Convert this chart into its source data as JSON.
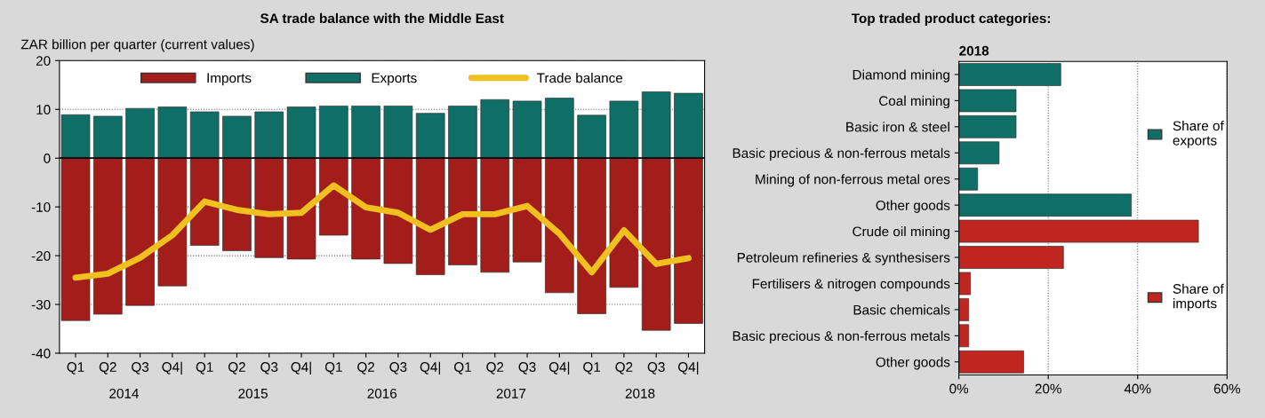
{
  "chart_data": [
    {
      "type": "bar",
      "title": "SA trade balance with the Middle East",
      "ylabel": "ZAR billion per quarter (current values)",
      "categories": [
        "Q1",
        "Q2",
        "Q3",
        "Q4|",
        "Q1",
        "Q2",
        "Q3",
        "Q4|",
        "Q1",
        "Q2",
        "Q3",
        "Q4|",
        "Q1",
        "Q2",
        "Q3",
        "Q4|",
        "Q1",
        "Q2",
        "Q3",
        "Q4|"
      ],
      "series": [
        {
          "name": "Imports",
          "color": "#a31d1a",
          "values": [
            -33.3,
            -32.0,
            -30.2,
            -26.2,
            -17.9,
            -19.0,
            -20.4,
            -20.7,
            -15.8,
            -20.7,
            -21.6,
            -23.9,
            -21.9,
            -23.4,
            -21.3,
            -27.6,
            -31.9,
            -26.5,
            -35.3,
            -33.9
          ]
        },
        {
          "name": "Exports",
          "color": "#0f6e66",
          "values": [
            8.9,
            8.6,
            10.2,
            10.5,
            9.5,
            8.6,
            9.5,
            10.5,
            10.7,
            10.7,
            10.7,
            9.2,
            10.7,
            12.0,
            11.7,
            12.3,
            8.8,
            11.7,
            13.6,
            13.3
          ]
        },
        {
          "name": "Trade balance",
          "type": "line",
          "color": "#f0c020",
          "values": [
            -24.5,
            -23.7,
            -20.4,
            -15.8,
            -8.9,
            -10.6,
            -11.5,
            -11.2,
            -5.6,
            -10.1,
            -11.2,
            -14.7,
            -11.5,
            -11.5,
            -9.8,
            -15.5,
            -23.4,
            -14.8,
            -21.7,
            -20.5
          ]
        }
      ],
      "annotations": [
        "2014",
        "2015",
        "2016",
        "2017",
        "2018"
      ],
      "ylim": [
        -40,
        20
      ],
      "yticks": [
        -40,
        -30,
        -20,
        -10,
        0,
        10,
        20
      ],
      "grid": "y",
      "legend": "top",
      "stacked": true
    },
    {
      "type": "bar",
      "orientation": "horizontal",
      "title": "Top traded product categories:",
      "subtitle": "2018",
      "categories": [
        "Diamond mining",
        "Coal mining",
        "Basic iron & steel",
        "Basic precious & non-ferrous metals",
        "Mining of non-ferrous metal ores",
        "Other goods",
        "Crude oil mining",
        "Petroleum refineries & synthesisers",
        "Fertilisers & nitrogen compounds",
        "Basic chemicals",
        "Basic precious & non-ferrous metals",
        "Other goods"
      ],
      "series": [
        {
          "name": "Share of exports",
          "color": "#0f6e66",
          "values": [
            22.8,
            12.8,
            12.8,
            9.0,
            4.2,
            38.6,
            null,
            null,
            null,
            null,
            null,
            null
          ]
        },
        {
          "name": "Share of imports",
          "color": "#c0261f",
          "values": [
            null,
            null,
            null,
            null,
            null,
            null,
            53.6,
            23.4,
            2.6,
            2.2,
            2.2,
            14.5
          ]
        }
      ],
      "xlim": [
        0,
        60
      ],
      "xticks": [
        {
          "value": 0,
          "label": "0%"
        },
        {
          "value": 20,
          "label": "20%"
        },
        {
          "value": 40,
          "label": "40%"
        },
        {
          "value": 60,
          "label": "60%"
        }
      ],
      "grid": "x",
      "legend": "right"
    }
  ]
}
